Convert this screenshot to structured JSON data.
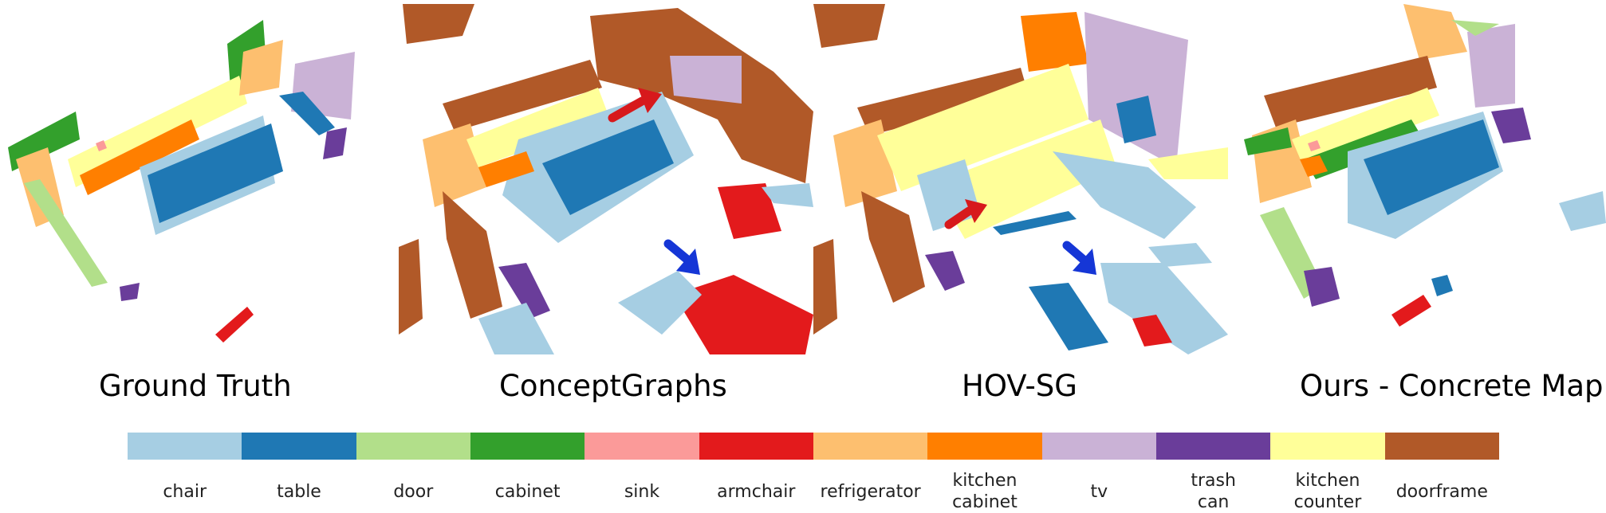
{
  "panels": [
    {
      "caption": "Ground Truth"
    },
    {
      "caption": "ConceptGraphs"
    },
    {
      "caption": "HOV-SG"
    },
    {
      "caption": "Ours - Concrete Map"
    }
  ],
  "legend": [
    {
      "label": "chair",
      "color": "#a6cee3"
    },
    {
      "label": "table",
      "color": "#1f78b4"
    },
    {
      "label": "door",
      "color": "#b2df8a"
    },
    {
      "label": "cabinet",
      "color": "#33a02c"
    },
    {
      "label": "sink",
      "color": "#fb9a99"
    },
    {
      "label": "armchair",
      "color": "#e31a1c"
    },
    {
      "label": "refrigerator",
      "color": "#fdbf6f"
    },
    {
      "label": "kitchen\ncabinet",
      "color": "#ff7f00"
    },
    {
      "label": "tv",
      "color": "#cab2d6"
    },
    {
      "label": "trash\ncan",
      "color": "#6a3d9a"
    },
    {
      "label": "kitchen\ncounter",
      "color": "#ffff99"
    },
    {
      "label": "doorframe",
      "color": "#b15928"
    }
  ],
  "arrow_colors": {
    "red": "#d7191c",
    "blue": "#1536d6"
  }
}
